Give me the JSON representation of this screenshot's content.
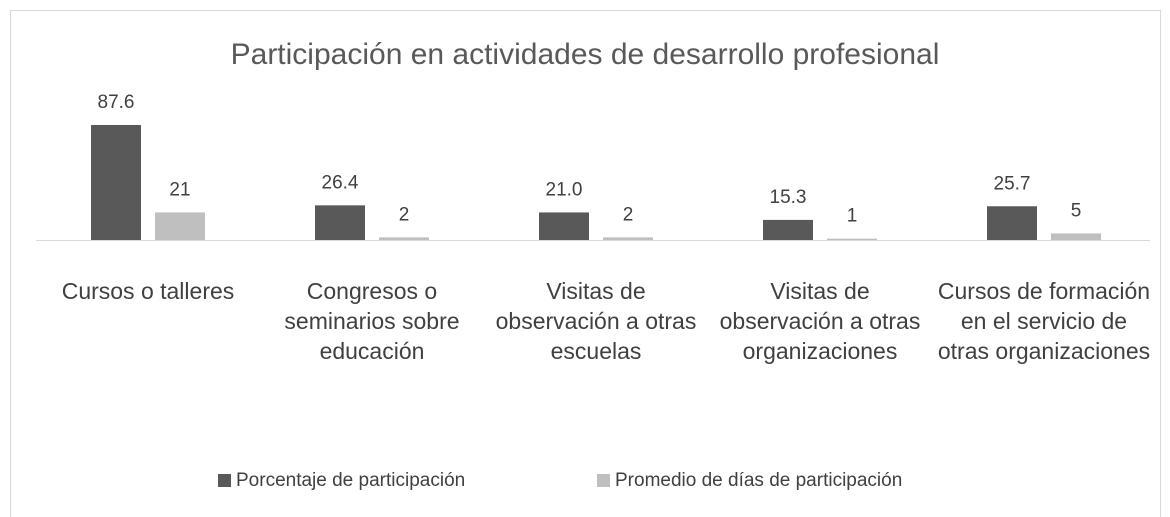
{
  "chart_data": {
    "type": "bar",
    "title": "Participación en actividades de desarrollo profesional",
    "categories": [
      "Cursos o talleres",
      "Congresos o seminarios sobre educación",
      "Visitas de observación a otras escuelas",
      "Visitas de observación a otras organizaciones",
      "Cursos de formación en el servicio de otras organizaciones"
    ],
    "series": [
      {
        "name": "Porcentaje de participación",
        "color": "#595959",
        "values": [
          87.6,
          26.4,
          21.0,
          15.3,
          25.7
        ],
        "value_labels": [
          "87.6",
          "26.4",
          "21.0",
          "15.3",
          "25.7"
        ]
      },
      {
        "name": "Promedio de días de participación",
        "color": "#bfbfbf",
        "values": [
          21,
          2,
          2,
          1,
          5
        ]
      }
    ],
    "ylim": [
      0,
      100
    ],
    "legend": "bottom"
  }
}
